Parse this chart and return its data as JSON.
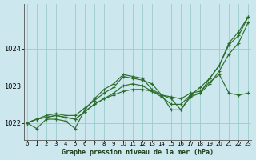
{
  "xlabel": "Graphe pression niveau de la mer (hPa)",
  "bg_color": "#cce8ee",
  "grid_color": "#99cccc",
  "line_color": "#2d6e2d",
  "ylim": [
    1021.55,
    1025.2
  ],
  "xlim": [
    -0.3,
    23.3
  ],
  "yticks": [
    1022,
    1023,
    1024
  ],
  "xticks": [
    0,
    1,
    2,
    3,
    4,
    5,
    6,
    7,
    8,
    9,
    10,
    11,
    12,
    13,
    14,
    15,
    16,
    17,
    18,
    19,
    20,
    21,
    22,
    23
  ],
  "series": [
    [
      1022.0,
      1021.85,
      1022.1,
      1022.1,
      1022.05,
      1021.85,
      1022.35,
      1022.65,
      1022.9,
      1023.05,
      1023.3,
      1023.25,
      1023.2,
      1022.9,
      1022.75,
      1022.35,
      1022.35,
      1022.75,
      1022.95,
      1023.2,
      1023.55,
      1024.1,
      1024.35,
      1024.85
    ],
    [
      1022.0,
      1022.1,
      1022.15,
      1022.2,
      1022.15,
      1022.1,
      1022.3,
      1022.5,
      1022.65,
      1022.75,
      1022.85,
      1022.9,
      1022.9,
      1022.85,
      1022.75,
      1022.7,
      1022.65,
      1022.8,
      1022.85,
      1023.1,
      1023.3,
      1022.8,
      1022.75,
      1022.8
    ],
    [
      1022.0,
      1022.1,
      1022.2,
      1022.25,
      1022.2,
      1022.2,
      1022.4,
      1022.6,
      1022.8,
      1022.95,
      1023.25,
      1023.2,
      1023.15,
      1023.05,
      1022.75,
      1022.65,
      1022.35,
      1022.7,
      1022.8,
      1023.2,
      1023.55,
      1024.15,
      1024.45,
      1024.85
    ],
    [
      1022.0,
      1022.1,
      1022.15,
      1022.2,
      1022.15,
      1022.1,
      1022.3,
      1022.5,
      1022.65,
      1022.8,
      1023.0,
      1023.05,
      1023.0,
      1022.85,
      1022.7,
      1022.5,
      1022.5,
      1022.75,
      1022.8,
      1023.05,
      1023.4,
      1023.85,
      1024.15,
      1024.7
    ]
  ]
}
